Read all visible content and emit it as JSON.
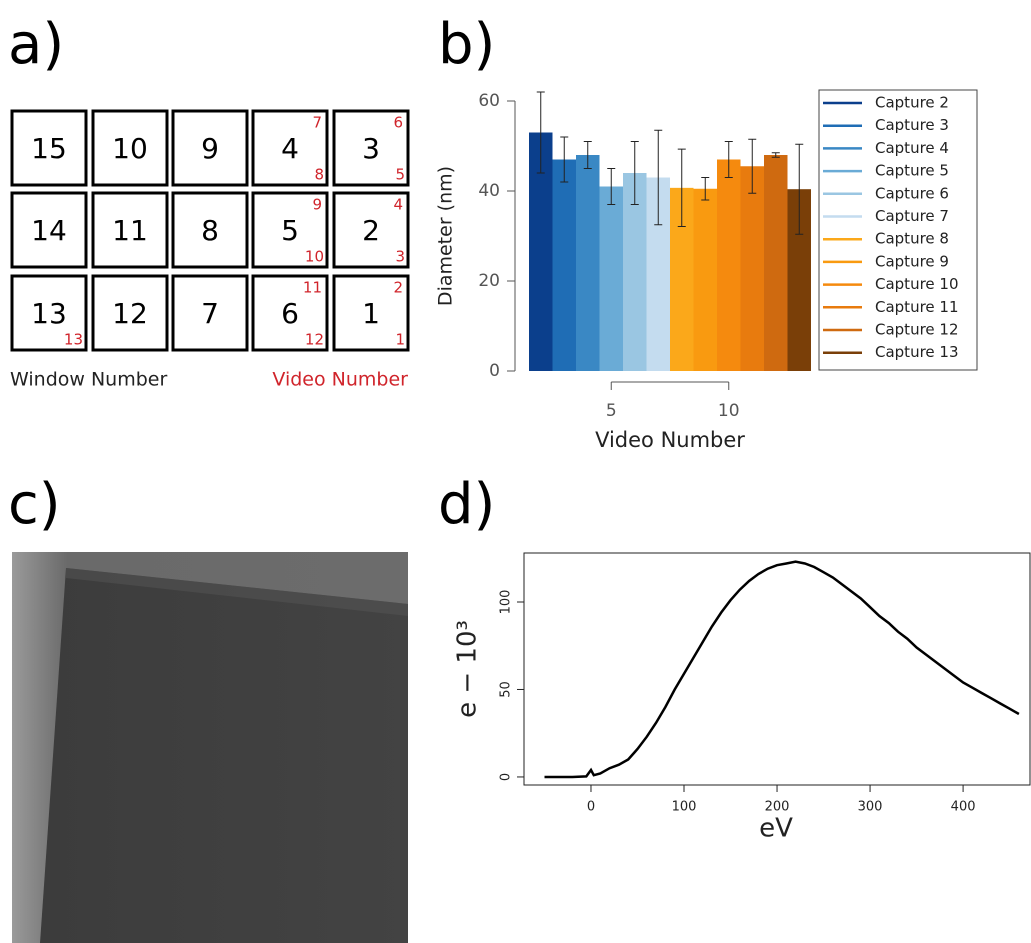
{
  "panel_labels": [
    "a)",
    "b)",
    "c)",
    "d)"
  ],
  "window_grid": {
    "rows": [
      [
        {
          "window": "15"
        },
        {
          "window": "10"
        },
        {
          "window": "9"
        },
        {
          "window": "4",
          "video_top": "7",
          "video_bottom": "8"
        },
        {
          "window": "3",
          "video_top": "6",
          "video_bottom": "5"
        }
      ],
      [
        {
          "window": "14"
        },
        {
          "window": "11"
        },
        {
          "window": "8"
        },
        {
          "window": "5",
          "video_top": "9",
          "video_bottom": "10"
        },
        {
          "window": "2",
          "video_top": "4",
          "video_bottom": "3"
        }
      ],
      [
        {
          "window": "13",
          "video_bottom": "13"
        },
        {
          "window": "12"
        },
        {
          "window": "7"
        },
        {
          "window": "6",
          "video_top": "11",
          "video_bottom": "12"
        },
        {
          "window": "1",
          "video_top": "2",
          "video_bottom": "1"
        }
      ]
    ],
    "window_label": "Window Number",
    "video_label": "Video Number",
    "video_color": "#d0242b"
  },
  "chart_data": [
    {
      "type": "bar",
      "x_label": "Video Number",
      "y_label": "Diameter (nm)",
      "x": [
        2,
        3,
        4,
        5,
        6,
        7,
        8,
        9,
        10,
        11,
        12,
        13
      ],
      "values": [
        53,
        47,
        48,
        41,
        44,
        43,
        40.7,
        40.5,
        47,
        45.5,
        48,
        40.4
      ],
      "errors": [
        9,
        5,
        3,
        4,
        7,
        10.5,
        8.6,
        2.5,
        4,
        6,
        0.5,
        10
      ],
      "colors": [
        "#0b3f8c",
        "#1f6db5",
        "#3a88c4",
        "#6aabd6",
        "#9ac6e2",
        "#c4dcef",
        "#fba81a",
        "#f99a10",
        "#f58a0e",
        "#e87b0e",
        "#cf6a10",
        "#7a3f08"
      ],
      "legend": [
        "Capture 2",
        "Capture 3",
        "Capture 4",
        "Capture 5",
        "Capture 6",
        "Capture 7",
        "Capture 8",
        "Capture 9",
        "Capture 10",
        "Capture 11",
        "Capture 12",
        "Capture 13"
      ],
      "xlim": [
        1.5,
        13.5
      ],
      "ylim": [
        0,
        62
      ],
      "xticks": [
        5,
        10
      ],
      "yticks": [
        0,
        20,
        40,
        60
      ]
    },
    {
      "type": "line",
      "x_label": "eV",
      "y_label": "e − 10³",
      "color": "#000000",
      "x": [
        -50,
        -20,
        -5,
        0,
        3,
        10,
        20,
        30,
        40,
        50,
        60,
        70,
        80,
        90,
        100,
        110,
        120,
        130,
        140,
        150,
        160,
        170,
        180,
        190,
        200,
        210,
        220,
        230,
        240,
        250,
        260,
        270,
        280,
        290,
        300,
        310,
        320,
        330,
        340,
        350,
        360,
        370,
        380,
        390,
        400,
        410,
        420,
        430,
        440,
        450,
        460
      ],
      "y": [
        0,
        0,
        0.3,
        4,
        1,
        2,
        5,
        7,
        10,
        16,
        23,
        31,
        40,
        50,
        59,
        68,
        77,
        86,
        94,
        101,
        107,
        112,
        116,
        119,
        121,
        122,
        123,
        122,
        120,
        117,
        114,
        110,
        106,
        102,
        97,
        92,
        88,
        83,
        79,
        74,
        70,
        66,
        62,
        58,
        54,
        51,
        48,
        45,
        42,
        39,
        36
      ],
      "xlim": [
        -72,
        473
      ],
      "ylim": [
        -4.6,
        128
      ],
      "xticks": [
        0,
        100,
        200,
        300,
        400
      ],
      "yticks": [
        0,
        50,
        100
      ]
    }
  ]
}
